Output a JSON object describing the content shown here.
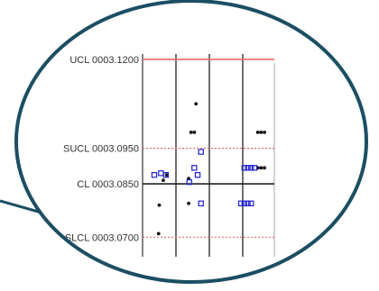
{
  "colors": {
    "background": "#ffffff",
    "bubble_border": "#1c4e63",
    "ucl_line": "#e86a6a",
    "sigma_line": "#e86a6a",
    "center_line": "#222222",
    "subgroup_divider": "#222222",
    "point_black": "#111111",
    "point_blue": "#2020d0"
  },
  "chart_data": {
    "type": "scatter",
    "title": "",
    "xlabel": "",
    "ylabel": "",
    "ylim": [
      0.0645,
      0.1215
    ],
    "limit_lines": [
      {
        "key": "ucl",
        "label": "UCL 0003.1200",
        "value": 0.12,
        "style": "solid",
        "color": "#e86a6a"
      },
      {
        "key": "sucl",
        "label": "SUCL 0003.0950",
        "value": 0.095,
        "style": "dotted",
        "color": "#e86a6a"
      },
      {
        "key": "cl",
        "label": "CL 0003.0850",
        "value": 0.085,
        "style": "solid",
        "color": "#222222"
      },
      {
        "key": "slcl",
        "label": "SLCL 0003.0700",
        "value": 0.07,
        "style": "dotted",
        "color": "#e86a6a"
      }
    ],
    "subgroup_boundaries": [
      1,
      2,
      3
    ],
    "series": [
      {
        "marker": "dot",
        "color": "#111111",
        "points": [
          {
            "x": 1.6,
            "y": 0.1075
          },
          {
            "x": 1.45,
            "y": 0.0995
          },
          {
            "x": 1.55,
            "y": 0.0995
          },
          {
            "x": 1.38,
            "y": 0.0865
          },
          {
            "x": 0.62,
            "y": 0.086
          },
          {
            "x": 0.5,
            "y": 0.079
          },
          {
            "x": 1.38,
            "y": 0.0795
          },
          {
            "x": 0.72,
            "y": 0.0875
          },
          {
            "x": 0.48,
            "y": 0.071
          },
          {
            "x": 3.45,
            "y": 0.0995
          },
          {
            "x": 3.55,
            "y": 0.0995
          },
          {
            "x": 3.65,
            "y": 0.0995
          },
          {
            "x": 3.45,
            "y": 0.0895
          },
          {
            "x": 3.55,
            "y": 0.0895
          },
          {
            "x": 3.65,
            "y": 0.0895
          }
        ]
      },
      {
        "marker": "square",
        "color": "#2020d0",
        "points": [
          {
            "x": 0.35,
            "y": 0.0875
          },
          {
            "x": 0.55,
            "y": 0.088
          },
          {
            "x": 0.7,
            "y": 0.0875
          },
          {
            "x": 1.75,
            "y": 0.094
          },
          {
            "x": 1.55,
            "y": 0.0895
          },
          {
            "x": 1.65,
            "y": 0.0875
          },
          {
            "x": 1.4,
            "y": 0.0855
          },
          {
            "x": 1.75,
            "y": 0.0795
          },
          {
            "x": 3.05,
            "y": 0.0895
          },
          {
            "x": 3.15,
            "y": 0.0895
          },
          {
            "x": 3.25,
            "y": 0.0895
          },
          {
            "x": 3.35,
            "y": 0.0895
          },
          {
            "x": 2.95,
            "y": 0.0795
          },
          {
            "x": 3.05,
            "y": 0.0795
          },
          {
            "x": 3.15,
            "y": 0.0795
          },
          {
            "x": 3.25,
            "y": 0.0795
          }
        ]
      }
    ]
  }
}
